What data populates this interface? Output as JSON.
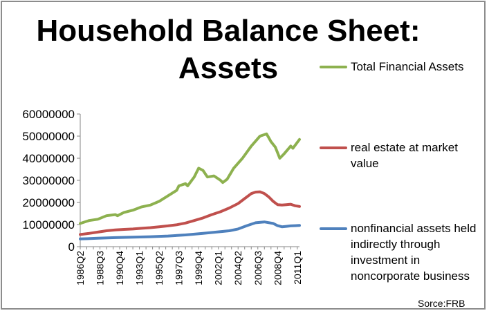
{
  "chart_data": {
    "type": "line",
    "title": "Household Balance Sheet: Assets",
    "title_lines": [
      "Household Balance Sheet:",
      "Assets"
    ],
    "source": "Sorce:FRB",
    "x_tick_labels": [
      "1986Q2",
      "1988Q3",
      "1990Q4",
      "1993Q1",
      "1995Q2",
      "1997Q3",
      "1999Q4",
      "2002Q1",
      "2004Q2",
      "2006Q3",
      "2008Q4",
      "2011Q1"
    ],
    "y_tick_labels": [
      "0",
      "10000000",
      "20000000",
      "30000000",
      "40000000",
      "50000000",
      "60000000"
    ],
    "ylim": [
      0,
      60000000
    ],
    "x_range": [
      "1986Q2",
      "2011Q2"
    ],
    "grid": false,
    "legend": "right",
    "series": [
      {
        "name": "Total Financial Assets",
        "color": "#8db14f",
        "x": [
          "1986Q2",
          "1987Q2",
          "1988Q2",
          "1989Q2",
          "1990Q2",
          "1990Q3",
          "1991Q2",
          "1992Q2",
          "1993Q2",
          "1994Q2",
          "1995Q2",
          "1996Q2",
          "1997Q2",
          "1997Q3",
          "1998Q2",
          "1998Q3",
          "1999Q2",
          "1999Q4",
          "2000Q2",
          "2000Q4",
          "2001Q3",
          "2002Q2",
          "2002Q3",
          "2003Q1",
          "2003Q4",
          "2004Q4",
          "2005Q4",
          "2006Q4",
          "2007Q3",
          "2008Q1",
          "2008Q3",
          "2009Q1",
          "2009Q3",
          "2010Q2",
          "2010Q3",
          "2011Q2"
        ],
        "values": [
          10500000,
          11800000,
          12400000,
          14000000,
          14500000,
          14000000,
          15500000,
          16500000,
          18000000,
          18800000,
          20500000,
          23000000,
          25500000,
          27500000,
          28500000,
          27500000,
          31500000,
          35500000,
          34500000,
          31500000,
          32000000,
          30000000,
          29000000,
          30500000,
          35500000,
          40000000,
          45500000,
          50000000,
          51000000,
          47500000,
          45000000,
          40000000,
          42000000,
          45500000,
          44500000,
          48500000
        ]
      },
      {
        "name": "real estate at market value",
        "color": "#c0504d",
        "x": [
          "1986Q2",
          "1987Q2",
          "1988Q2",
          "1989Q2",
          "1990Q2",
          "1991Q2",
          "1992Q2",
          "1993Q2",
          "1994Q2",
          "1995Q2",
          "1996Q2",
          "1997Q2",
          "1998Q2",
          "1999Q2",
          "2000Q2",
          "2001Q2",
          "2002Q2",
          "2003Q2",
          "2004Q2",
          "2005Q2",
          "2005Q4",
          "2006Q2",
          "2006Q4",
          "2007Q2",
          "2007Q4",
          "2008Q2",
          "2008Q4",
          "2009Q2",
          "2009Q4",
          "2010Q2",
          "2010Q4",
          "2011Q2"
        ],
        "values": [
          5500000,
          6000000,
          6600000,
          7200000,
          7600000,
          7800000,
          8000000,
          8300000,
          8600000,
          9000000,
          9400000,
          9900000,
          10700000,
          11800000,
          13000000,
          14500000,
          15800000,
          17500000,
          19500000,
          22500000,
          24000000,
          24700000,
          24800000,
          24000000,
          22500000,
          20500000,
          19000000,
          18800000,
          19000000,
          19200000,
          18500000,
          18200000
        ]
      },
      {
        "name": " nonfinancial assets held indirectly through investment in noncorporate business",
        "color": "#4f81bd",
        "x": [
          "1986Q2",
          "1988Q2",
          "1990Q2",
          "1992Q2",
          "1994Q2",
          "1996Q2",
          "1998Q2",
          "2000Q2",
          "2002Q2",
          "2003Q2",
          "2004Q2",
          "2005Q2",
          "2006Q2",
          "2007Q2",
          "2008Q2",
          "2008Q4",
          "2009Q2",
          "2009Q4",
          "2010Q2",
          "2010Q4",
          "2011Q2"
        ],
        "values": [
          3500000,
          3800000,
          4100000,
          4300000,
          4500000,
          4800000,
          5300000,
          6000000,
          6800000,
          7200000,
          8000000,
          9500000,
          10800000,
          11200000,
          10500000,
          9500000,
          9000000,
          9200000,
          9400000,
          9500000,
          9600000
        ]
      }
    ]
  }
}
